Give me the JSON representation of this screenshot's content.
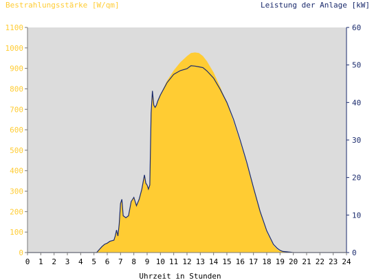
{
  "chart_data": {
    "type": "area",
    "left_axis_title": "Bestrahlungsstärke [W/qm]",
    "right_axis_title": "Leistung der Anlage [kW]",
    "xlabel": "Uhrzeit in Stunden",
    "xlim": [
      0,
      24
    ],
    "ylim_left": [
      0,
      1100
    ],
    "ylim_right": [
      0,
      60
    ],
    "x_ticks": [
      0,
      1,
      2,
      3,
      4,
      5,
      6,
      7,
      8,
      9,
      10,
      11,
      12,
      13,
      14,
      15,
      16,
      17,
      18,
      19,
      20,
      21,
      22,
      23,
      24
    ],
    "y_left_ticks": [
      0,
      100,
      200,
      300,
      400,
      500,
      600,
      700,
      800,
      900,
      1000,
      1100
    ],
    "y_right_ticks": [
      0,
      10,
      20,
      30,
      40,
      50,
      60
    ],
    "grid": false,
    "colors": {
      "background": "#dcdcdc",
      "irradiance": "#ffcc33",
      "power": "#1a2a6c",
      "left_axis": "#ffcc33",
      "right_axis": "#1a2a6c"
    },
    "series": [
      {
        "name": "Bestrahlungsstärke",
        "axis": "left",
        "x": [
          0,
          5.2,
          5.4,
          5.6,
          5.8,
          6.0,
          6.2,
          6.5,
          6.6,
          6.7,
          6.8,
          6.9,
          7.0,
          7.1,
          7.2,
          7.4,
          7.6,
          7.8,
          8.0,
          8.2,
          8.4,
          8.6,
          8.8,
          8.9,
          9.0,
          9.1,
          9.2,
          9.3,
          9.4,
          9.5,
          9.6,
          9.7,
          9.8,
          10.0,
          10.5,
          11.0,
          11.5,
          12.0,
          12.3,
          12.6,
          12.9,
          13.2,
          13.5,
          14.0,
          14.5,
          15.0,
          15.5,
          16.0,
          16.5,
          17.0,
          17.5,
          18.0,
          18.5,
          18.8,
          19.0,
          19.2,
          19.5,
          19.8,
          20.0,
          20.1,
          24
        ],
        "y": [
          0,
          0,
          15,
          30,
          40,
          45,
          55,
          60,
          80,
          110,
          80,
          140,
          240,
          260,
          180,
          170,
          180,
          250,
          270,
          230,
          260,
          310,
          380,
          340,
          330,
          310,
          330,
          680,
          790,
          720,
          710,
          720,
          740,
          770,
          840,
          890,
          930,
          960,
          975,
          978,
          975,
          960,
          935,
          880,
          810,
          730,
          640,
          540,
          430,
          310,
          195,
          100,
          35,
          15,
          8,
          4,
          2,
          1,
          0,
          0,
          0
        ]
      },
      {
        "name": "Leistung der Anlage",
        "axis": "right",
        "x": [
          0,
          5.2,
          5.4,
          5.6,
          5.8,
          6.0,
          6.2,
          6.5,
          6.6,
          6.7,
          6.8,
          6.9,
          7.0,
          7.1,
          7.2,
          7.4,
          7.6,
          7.8,
          8.0,
          8.2,
          8.4,
          8.6,
          8.8,
          8.9,
          9.0,
          9.1,
          9.2,
          9.3,
          9.4,
          9.5,
          9.6,
          9.7,
          9.8,
          10.0,
          10.5,
          11.0,
          11.5,
          12.0,
          12.3,
          12.6,
          12.9,
          13.2,
          13.5,
          14.0,
          14.5,
          15.0,
          15.5,
          16.0,
          16.5,
          17.0,
          17.5,
          18.0,
          18.5,
          18.8,
          19.0,
          19.2,
          19.5,
          19.8,
          20.0,
          20.1,
          24
        ],
        "y": [
          0,
          0,
          0.8,
          1.6,
          2.2,
          2.5,
          3.0,
          3.3,
          4.4,
          6.0,
          4.4,
          7.6,
          13.1,
          14.2,
          9.8,
          9.3,
          9.8,
          13.6,
          14.7,
          12.5,
          14.2,
          16.9,
          20.7,
          18.5,
          18.0,
          16.9,
          18.0,
          37.1,
          43.1,
          39.3,
          38.7,
          39.3,
          40.4,
          42.0,
          45.3,
          47.5,
          48.5,
          49.0,
          49.8,
          49.7,
          49.5,
          49.3,
          48.4,
          46.5,
          43.5,
          40.0,
          35.5,
          30.0,
          24.0,
          17.3,
          11.0,
          5.8,
          2.2,
          1.1,
          0.6,
          0.3,
          0.2,
          0.1,
          0,
          0,
          0
        ]
      }
    ]
  }
}
